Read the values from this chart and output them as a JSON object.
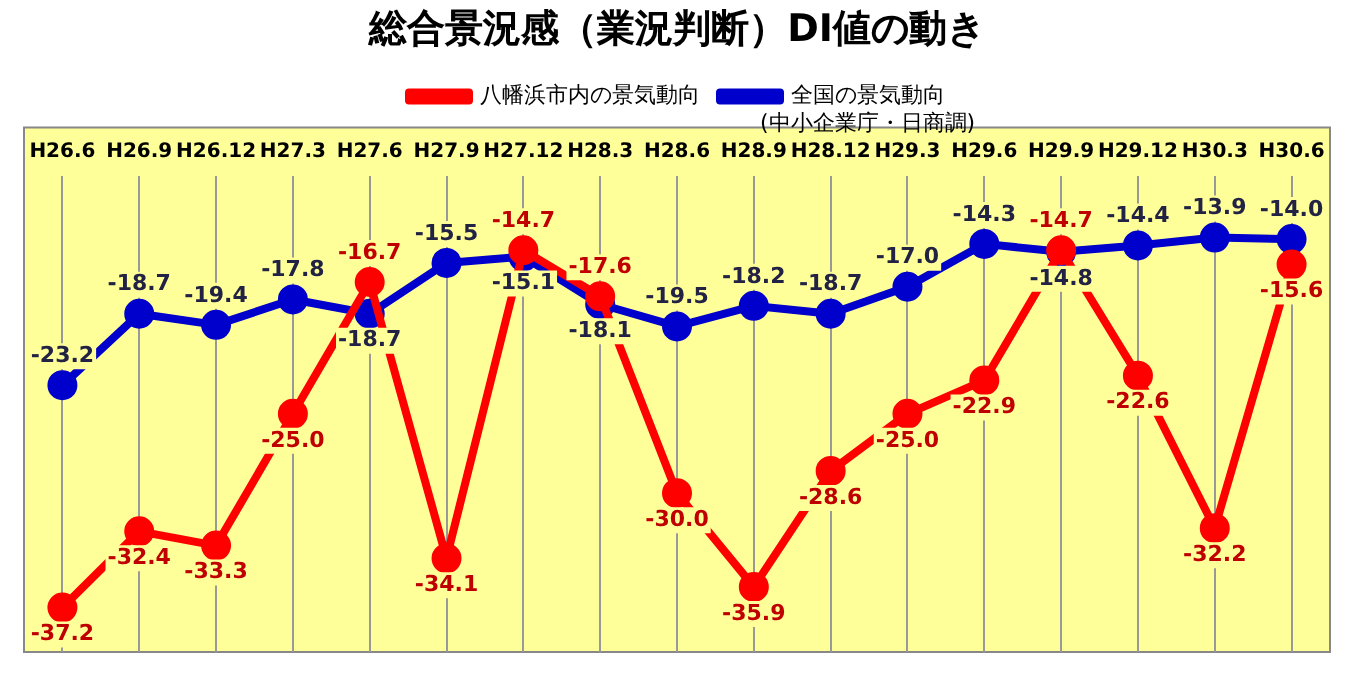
{
  "chart_data": {
    "type": "line",
    "title": "総合景況感（業況判断）DI値の動き",
    "categories": [
      "H26.6",
      "H26.9",
      "H26.12",
      "H27.3",
      "H27.6",
      "H27.9",
      "H27.12",
      "H28.3",
      "H28.6",
      "H28.9",
      "H28.12",
      "H29.3",
      "H29.6",
      "H29.9",
      "H29.12",
      "H30.3",
      "H30.6"
    ],
    "series": [
      {
        "name": "八幡浜市内の景気動向",
        "color": "#ff0000",
        "values": [
          -37.2,
          -32.4,
          -33.3,
          -25.0,
          -16.7,
          -34.1,
          -14.7,
          -17.6,
          -30.0,
          -35.9,
          -28.6,
          -25.0,
          -22.9,
          -14.7,
          -22.6,
          -32.2,
          -15.6
        ],
        "value_labels": [
          "-37.2",
          "-32.4",
          "-33.3",
          "-25.0",
          "-16.7",
          "-34.1",
          "-14.7",
          "-17.6",
          "-30.0",
          "-35.9",
          "-28.6",
          "-25.0",
          "-22.9",
          "-14.7",
          "-22.6",
          "-32.2",
          "-15.6"
        ]
      },
      {
        "name": "全国の景気動向",
        "color": "#0000cc",
        "values": [
          -23.2,
          -18.7,
          -19.4,
          -17.8,
          -18.7,
          -15.5,
          -15.1,
          -18.1,
          -19.5,
          -18.2,
          -18.7,
          -17.0,
          -14.3,
          -14.8,
          -14.4,
          -13.9,
          -14.0
        ],
        "value_labels": [
          "-23.2",
          "-18.7",
          "-19.4",
          "-17.8",
          "-18.7",
          "-15.5",
          "-15.1",
          "-18.1",
          "-19.5",
          "-18.2",
          "-18.7",
          "-17.0",
          "-14.3",
          "-14.8",
          "-14.4",
          "-13.9",
          "-14.0"
        ]
      }
    ],
    "annotations": [
      "(中小企業庁・日商調)"
    ],
    "grid": "x",
    "legend": "top",
    "marker": "circle",
    "line_style": "solid"
  }
}
